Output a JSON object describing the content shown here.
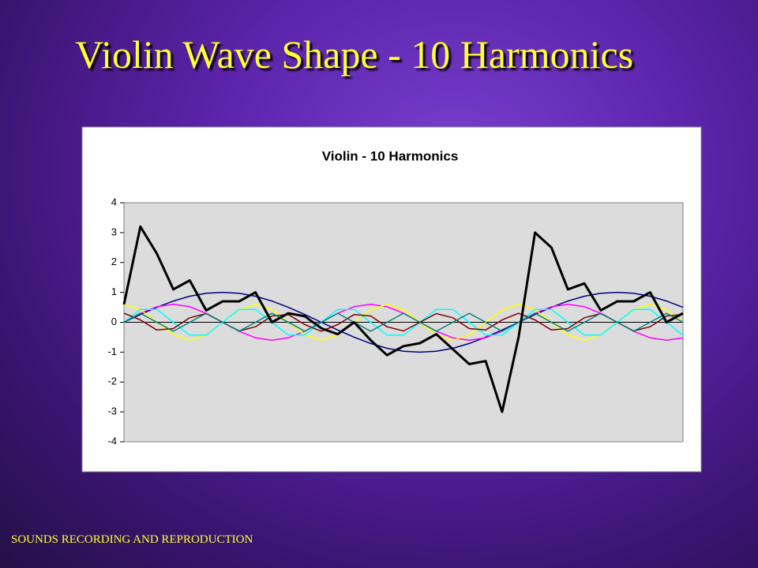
{
  "slide_title": "Violin Wave Shape - 10 Harmonics",
  "footer": "SOUNDS RECORDING AND REPRODUCTION",
  "chart_data": {
    "type": "line",
    "title": "Violin - 10 Harmonics",
    "ylim": [
      -4,
      4
    ],
    "yticks": [
      -4,
      -3,
      -2,
      -1,
      0,
      1,
      2,
      3,
      4
    ],
    "series": [
      {
        "color": "#000080",
        "values": [
          0,
          0.26,
          0.5,
          0.71,
          0.87,
          0.97,
          1,
          0.97,
          0.87,
          0.71,
          0.5,
          0.26,
          0,
          -0.26,
          -0.5,
          -0.71,
          -0.87,
          -0.97,
          -1,
          -0.97,
          -0.87,
          -0.71,
          -0.5,
          -0.26,
          0,
          0.26,
          0.5,
          0.71,
          0.87,
          0.97,
          1,
          0.97,
          0.87,
          0.71,
          0.5
        ]
      },
      {
        "color": "#ff00ff",
        "values": [
          0,
          0.3,
          0.52,
          0.6,
          0.52,
          0.3,
          0,
          -0.3,
          -0.52,
          -0.6,
          -0.52,
          -0.3,
          0,
          0.3,
          0.52,
          0.6,
          0.52,
          0.3,
          0,
          -0.3,
          -0.52,
          -0.6,
          -0.52,
          -0.3,
          0,
          0.3,
          0.52,
          0.6,
          0.52,
          0.3,
          0,
          -0.3,
          -0.52,
          -0.6,
          -0.52
        ]
      },
      {
        "color": "#ffff00",
        "values": [
          0.6,
          0.42,
          0,
          -0.42,
          -0.6,
          -0.42,
          0,
          0.42,
          0.6,
          0.42,
          0,
          -0.42,
          -0.6,
          -0.42,
          0,
          0.42,
          0.6,
          0.42,
          0,
          -0.42,
          -0.6,
          -0.42,
          0,
          0.42,
          0.6,
          0.42,
          0,
          -0.42,
          -0.6,
          -0.42,
          0,
          0.42,
          0.6,
          0.42,
          0
        ]
      },
      {
        "color": "#00ffff",
        "values": [
          0,
          0.43,
          0.43,
          0,
          -0.43,
          -0.43,
          0,
          0.43,
          0.43,
          0,
          -0.43,
          -0.43,
          0,
          0.43,
          0.43,
          0,
          -0.43,
          -0.43,
          0,
          0.43,
          0.43,
          0,
          -0.43,
          -0.43,
          0,
          0.43,
          0.43,
          0,
          -0.43,
          -0.43,
          0,
          0.43,
          0.43,
          0,
          -0.43
        ]
      },
      {
        "color": "#800000",
        "values": [
          0.3,
          0.08,
          -0.26,
          -0.21,
          0.15,
          0.29,
          0,
          -0.29,
          -0.15,
          0.21,
          0.26,
          -0.08,
          -0.3,
          -0.08,
          0.26,
          0.21,
          -0.15,
          -0.29,
          0,
          0.29,
          0.15,
          -0.21,
          -0.26,
          0.08,
          0.3,
          0.08,
          -0.26,
          -0.21,
          0.15,
          0.29,
          0,
          -0.29,
          -0.15,
          0.21,
          0.26
        ]
      },
      {
        "color": "#008080",
        "values": [
          0,
          0.3,
          0,
          -0.3,
          0,
          0.3,
          0,
          -0.3,
          0,
          0.3,
          0,
          -0.3,
          0,
          0.3,
          0,
          -0.3,
          0,
          0.3,
          0,
          -0.3,
          0,
          0.3,
          0,
          -0.3,
          0,
          0.3,
          0,
          -0.3,
          0,
          0.3,
          0,
          -0.3,
          0,
          0.3,
          0
        ]
      },
      {
        "color": "#000000",
        "values": [
          0.6,
          3.2,
          2.3,
          1.1,
          1.4,
          0.4,
          0.7,
          0.7,
          1.0,
          0,
          0.3,
          0.2,
          -0.2,
          -0.4,
          0,
          -0.6,
          -1.1,
          -0.8,
          -0.7,
          -0.4,
          -0.9,
          -1.4,
          -1.3,
          -3.0,
          -0.5,
          3.0,
          2.5,
          1.1,
          1.3,
          0.4,
          0.7,
          0.7,
          1.0,
          0,
          0.3
        ]
      }
    ]
  }
}
